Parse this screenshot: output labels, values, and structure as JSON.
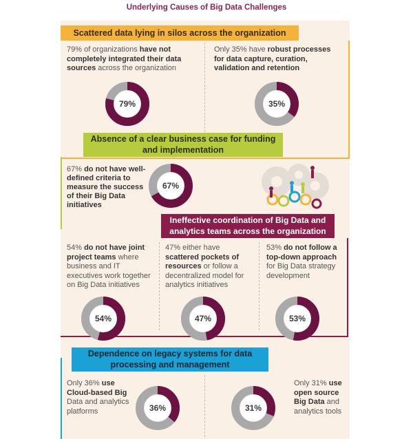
{
  "title": "Underlying Causes of Big Data Challenges",
  "colors": {
    "plum": "#6b1243",
    "gray": "#a9a9a9",
    "yellow": "#f5b33a",
    "green": "#b6cc3d",
    "maroon": "#8b1d4a",
    "blue": "#1aa2d6",
    "panel": "#fbf0e6"
  },
  "sections": [
    {
      "heading": "Scattered data lying in silos across the organization",
      "items": [
        {
          "pre": "79% of organizations ",
          "bold": "have not completely integrated their data sources",
          "post": " across the organization",
          "value": 79,
          "label": "79%"
        },
        {
          "pre": "Only 35% have ",
          "bold": "robust processes for data capture, curation, validation and retention",
          "post": "",
          "value": 35,
          "label": "35%"
        }
      ]
    },
    {
      "heading": "Absence of a clear business case for funding and implementation",
      "items": [
        {
          "pre": "67% ",
          "bold": "do not have well-defined criteria to measure the success of their Big Data initiatives",
          "post": "",
          "value": 67,
          "label": "67%"
        }
      ]
    },
    {
      "heading": "Ineffective coordination of Big Data and analytics teams across the organization",
      "items": [
        {
          "pre": "54% ",
          "bold": "do not have joint project teams",
          "post": " where business and IT executives work together on Big Data initiatives",
          "value": 54,
          "label": "54%"
        },
        {
          "pre": "47% either have ",
          "bold": "scattered pockets of resources",
          "post": " or follow a decentralized model for analytics initiatives",
          "value": 47,
          "label": "47%"
        },
        {
          "pre": "53% ",
          "bold": "do not follow a top-down approach",
          "post": " for Big Data strategy development",
          "value": 53,
          "label": "53%"
        }
      ]
    },
    {
      "heading": "Dependence on legacy systems for data processing and management",
      "items": [
        {
          "pre": "Only 36% ",
          "bold": "use Cloud-based Big",
          "post": " Data and analytics platforms",
          "value": 36,
          "label": "36%"
        },
        {
          "pre": "Only 31% ",
          "bold": "use open source Big Data",
          "post": " and analytics tools",
          "value": 31,
          "label": "31%"
        }
      ]
    }
  ]
}
